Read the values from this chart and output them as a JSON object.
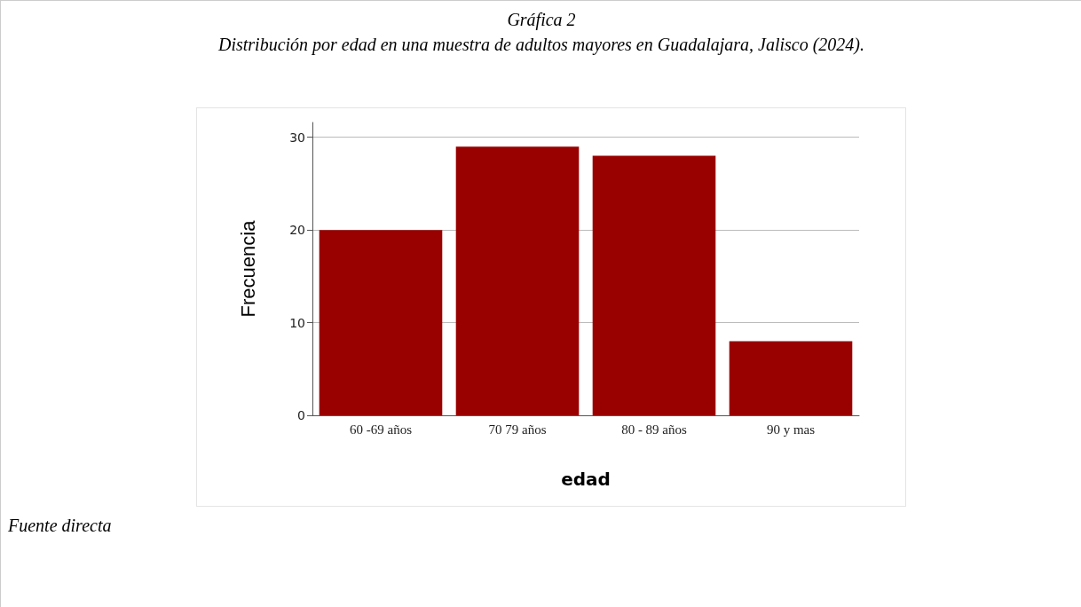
{
  "chart_data": {
    "type": "bar",
    "title": "Gráfica 2",
    "subtitle": "Distribución por edad en una muestra de adultos mayores en Guadalajara, Jalisco (2024).",
    "xlabel": "edad",
    "ylabel": "Frecuencia",
    "categories": [
      "60 -69 años",
      "70 79 años",
      "80 - 89 años",
      "90 y mas"
    ],
    "values": [
      20,
      29,
      28,
      8
    ],
    "color": "#990000",
    "ylim": [
      0,
      31.6
    ],
    "yticks": [
      0,
      10,
      20,
      30
    ],
    "grid": "y",
    "annotations": [
      "Fuente directa"
    ]
  }
}
